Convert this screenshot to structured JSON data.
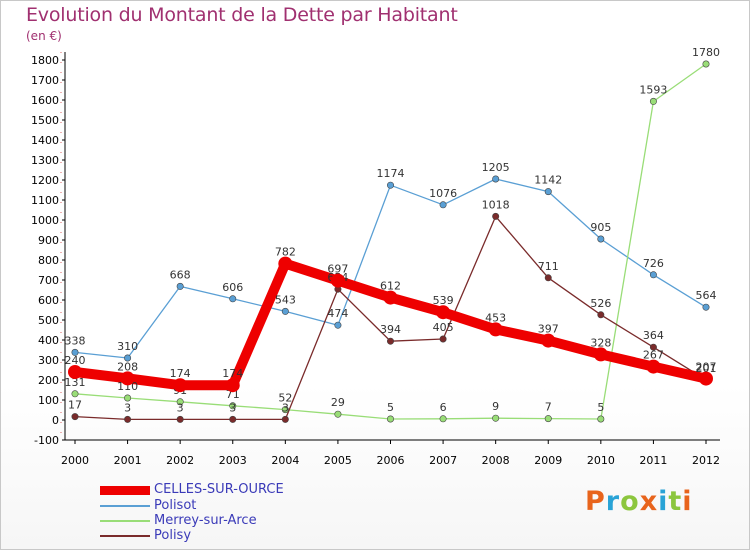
{
  "title": "Evolution du Montant de la Dette par Habitant",
  "unit": "(en €)",
  "logo": {
    "text": "Proxiti",
    "colors": [
      "#e8641c",
      "#29a3d6",
      "#8cc63e",
      "#e8641c",
      "#29a3d6",
      "#8cc63e",
      "#e8641c"
    ]
  },
  "chart_data": {
    "type": "line",
    "title": "Evolution du Montant de la Dette par Habitant",
    "ylabel": "(en €)",
    "xlabel": "",
    "ylim": [
      -100,
      1800
    ],
    "yticks": [
      -100,
      0,
      100,
      200,
      300,
      400,
      500,
      600,
      700,
      800,
      900,
      1000,
      1100,
      1200,
      1300,
      1400,
      1500,
      1600,
      1700,
      1800
    ],
    "grid": false,
    "legend_position": "bottom-left",
    "categories": [
      "2000",
      "2001",
      "2002",
      "2003",
      "2004",
      "2005",
      "2006",
      "2007",
      "2008",
      "2009",
      "2010",
      "2011",
      "2012"
    ],
    "series": [
      {
        "name": "CELLES-SUR-OURCE",
        "color": "#ee0000",
        "values": [
          240,
          208,
          174,
          174,
          782,
          697,
          612,
          539,
          453,
          397,
          328,
          267,
          207
        ]
      },
      {
        "name": "Polisot",
        "color": "#5a9fd4",
        "values": [
          338,
          310,
          668,
          606,
          543,
          474,
          1174,
          1076,
          1205,
          1142,
          905,
          726,
          564
        ]
      },
      {
        "name": "Merrey-sur-Arce",
        "color": "#99dd77",
        "values": [
          131,
          110,
          91,
          71,
          52,
          29,
          5,
          6,
          9,
          7,
          5,
          1593,
          1780
        ]
      },
      {
        "name": "Polisy",
        "color": "#7a2b2b",
        "values": [
          17,
          3,
          3,
          3,
          3,
          654,
          394,
          405,
          1018,
          711,
          526,
          364,
          201
        ]
      }
    ]
  }
}
